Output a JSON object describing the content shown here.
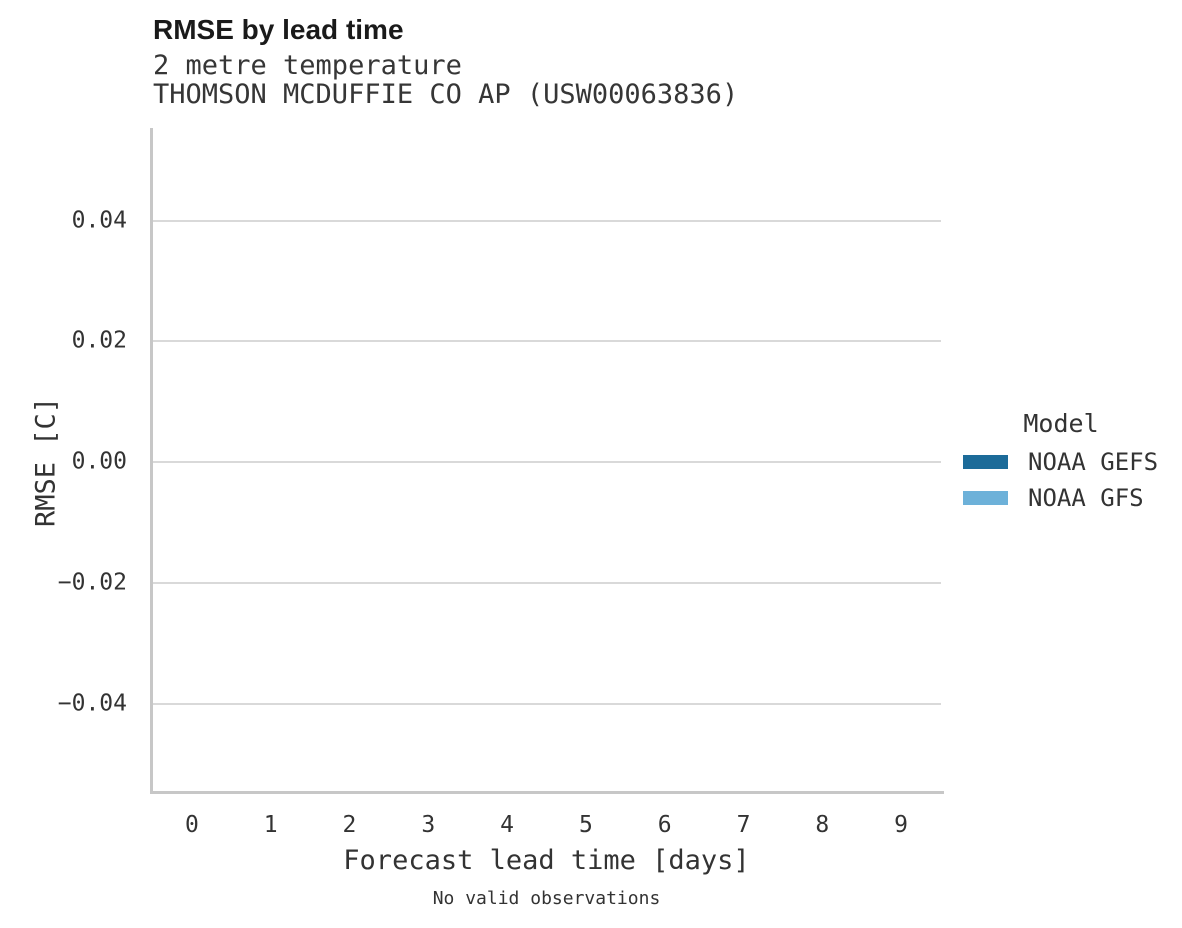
{
  "header": {
    "title": "RMSE by lead time",
    "subtitle_lines": [
      "2 metre temperature",
      "THOMSON MCDUFFIE CO AP (USW00063836)"
    ]
  },
  "chart_data": {
    "type": "line",
    "title": "RMSE by lead time",
    "subtitle": [
      "2 metre temperature",
      "THOMSON MCDUFFIE CO AP (USW00063836)"
    ],
    "xlabel": "Forecast lead time [days]",
    "ylabel": "RMSE [C]",
    "xlim": [
      -0.506,
      9.506
    ],
    "ylim": [
      -0.0545,
      0.0553
    ],
    "grid": true,
    "xticks": [
      {
        "value": 0,
        "label": "0"
      },
      {
        "value": 1,
        "label": "1"
      },
      {
        "value": 2,
        "label": "2"
      },
      {
        "value": 3,
        "label": "3"
      },
      {
        "value": 4,
        "label": "4"
      },
      {
        "value": 5,
        "label": "5"
      },
      {
        "value": 6,
        "label": "6"
      },
      {
        "value": 7,
        "label": "7"
      },
      {
        "value": 8,
        "label": "8"
      },
      {
        "value": 9,
        "label": "9"
      }
    ],
    "yticks": [
      {
        "value": 0.04,
        "label": "0.04"
      },
      {
        "value": 0.02,
        "label": "0.02"
      },
      {
        "value": 0.0,
        "label": "0.00"
      },
      {
        "value": -0.02,
        "label": "−0.02"
      },
      {
        "value": -0.04,
        "label": "−0.04"
      }
    ],
    "legend": {
      "title": "Model",
      "position": "right",
      "entries": [
        {
          "label": "NOAA GEFS",
          "color": "#1c6b99"
        },
        {
          "label": "NOAA GFS",
          "color": "#6db1d9"
        }
      ]
    },
    "series": [
      {
        "name": "NOAA GEFS",
        "color": "#1c6b99",
        "x": [],
        "y": []
      },
      {
        "name": "NOAA GFS",
        "color": "#6db1d9",
        "x": [],
        "y": []
      }
    ],
    "annotation": "No valid observations",
    "colors": {
      "gridline": "#d9d9d9",
      "spine": "#c7c7c7",
      "text": "#333333"
    }
  }
}
